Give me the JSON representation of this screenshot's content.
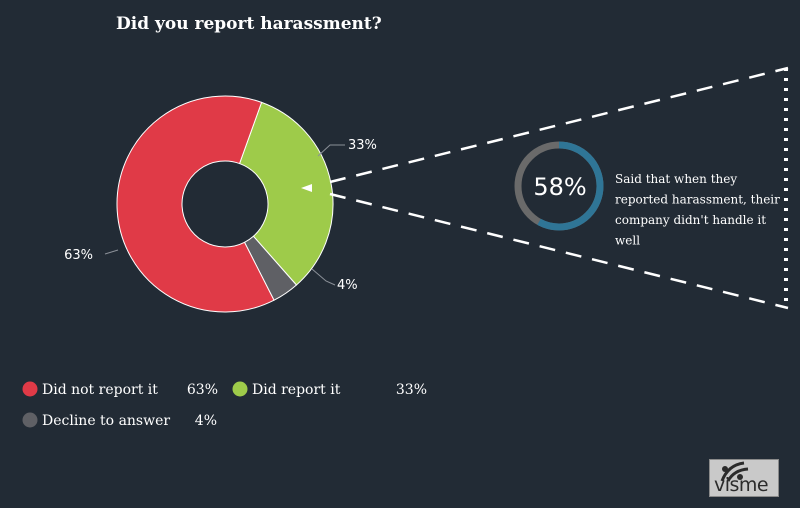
{
  "chart_data": {
    "type": "pie",
    "title": "Did you report harassment?",
    "slices": [
      {
        "label": "Did not report it",
        "value": 63,
        "value_label": "63%",
        "color": "#e03a47"
      },
      {
        "label": "Did report it",
        "value": 33,
        "value_label": "33%",
        "color": "#9ecb4a"
      },
      {
        "label": "Decline to answer",
        "value": 4,
        "value_label": "4%",
        "color": "#5f6065"
      }
    ],
    "legend_position": "bottom-left",
    "callout": {
      "value": 58,
      "value_label": "58%",
      "lines": [
        "Said that when they",
        "reported harassment, their",
        "company didn't handle it",
        "well"
      ],
      "ring_color": "#2f7596",
      "track_color": "#6a6a6a"
    }
  },
  "brand": {
    "logo_text": "visme"
  }
}
